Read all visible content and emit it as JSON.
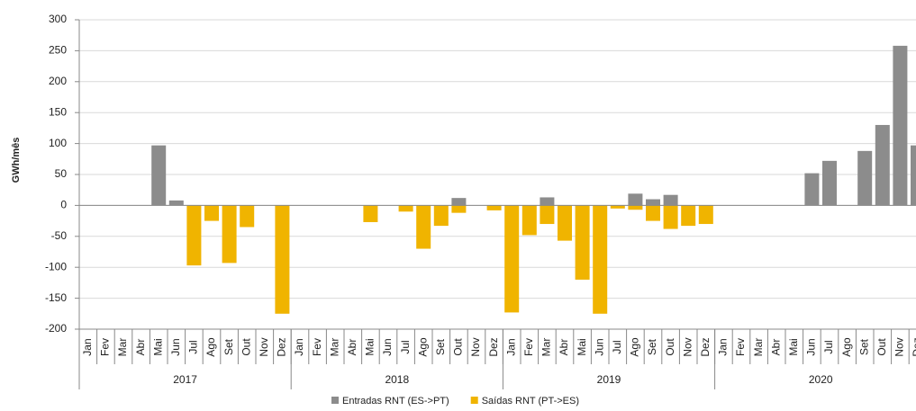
{
  "chart_data": {
    "type": "bar",
    "y_label": "GWh/mês",
    "groups": [
      {
        "label": "2017",
        "months": [
          "Jan",
          "Fev",
          "Mar",
          "Abr",
          "Mai",
          "Jun",
          "Jul",
          "Ago",
          "Set",
          "Out",
          "Nov",
          "Dez"
        ]
      },
      {
        "label": "2018",
        "months": [
          "Jan",
          "Fev",
          "Mar",
          "Abr",
          "Mai",
          "Jun",
          "Jul",
          "Ago",
          "Set",
          "Out",
          "Nov",
          "Dez"
        ]
      },
      {
        "label": "2019",
        "months": [
          "Jan",
          "Fev",
          "Mar",
          "Abr",
          "Mai",
          "Jun",
          "Jul",
          "Ago",
          "Set",
          "Out",
          "Nov",
          "Dez"
        ]
      },
      {
        "label": "2020",
        "months": [
          "Jan",
          "Fev",
          "Mar",
          "Abr",
          "Mai",
          "Jun",
          "Jul",
          "Ago",
          "Set",
          "Out",
          "Nov",
          "Dez"
        ]
      }
    ],
    "series": [
      {
        "name": "Entradas RNT (ES->PT)",
        "color": "#8c8c8c",
        "values": [
          null,
          null,
          null,
          null,
          97,
          8,
          null,
          null,
          null,
          null,
          null,
          null,
          null,
          null,
          null,
          null,
          null,
          null,
          null,
          null,
          null,
          12,
          null,
          null,
          null,
          null,
          13,
          null,
          null,
          null,
          null,
          19,
          10,
          17,
          null,
          null,
          null,
          null,
          null,
          null,
          null,
          52,
          72,
          null,
          88,
          130,
          258,
          97
        ]
      },
      {
        "name": "Saídas RNT (PT->ES)",
        "color": "#f0b400",
        "values": [
          null,
          null,
          null,
          null,
          null,
          null,
          -97,
          -25,
          -93,
          -35,
          null,
          -175,
          null,
          null,
          null,
          null,
          -27,
          null,
          -10,
          -70,
          -33,
          -12,
          null,
          -8,
          -173,
          -48,
          -30,
          -57,
          -120,
          -175,
          -5,
          -7,
          -25,
          -38,
          -33,
          -30,
          null,
          null,
          null,
          null,
          null,
          null,
          null,
          null,
          null,
          null,
          null,
          null
        ]
      }
    ],
    "ylim": [
      -200,
      300
    ],
    "yticks": [
      -200,
      -150,
      -100,
      -50,
      0,
      50,
      100,
      150,
      200,
      250,
      300
    ],
    "grid": true,
    "legend": "bottom"
  }
}
